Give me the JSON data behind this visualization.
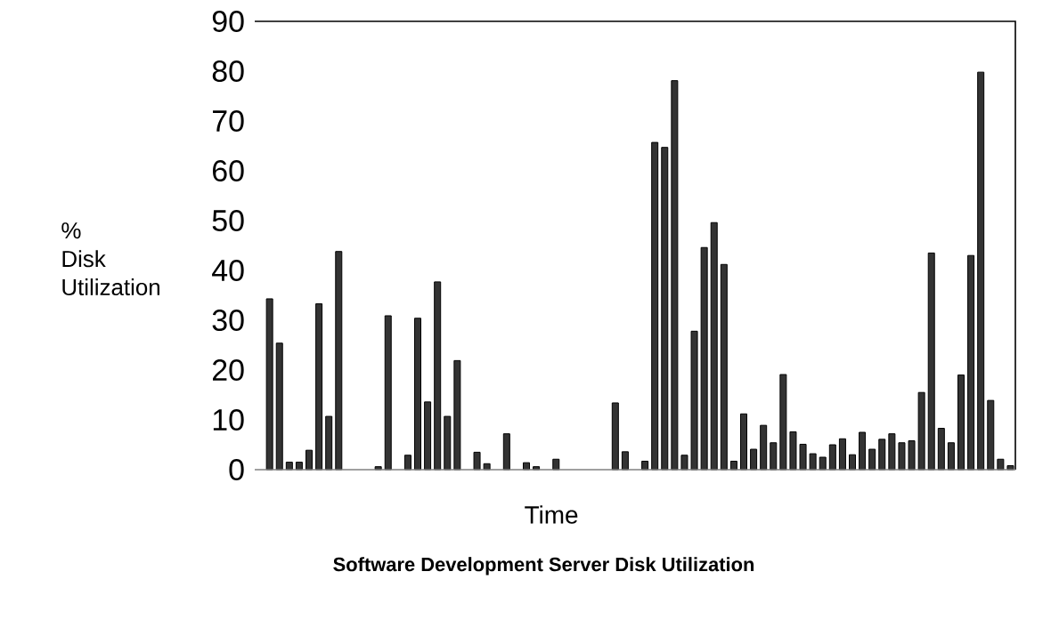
{
  "chart_data": {
    "type": "bar",
    "title": "Software Development Server Disk Utilization",
    "xlabel": "Time",
    "ylabel": "% Disk Utilization",
    "categories": [
      null,
      null,
      null,
      null,
      null,
      null,
      null,
      null,
      null,
      null,
      null,
      null,
      null,
      null,
      null,
      null,
      null,
      null,
      null,
      null,
      null,
      null,
      null,
      null,
      null,
      null,
      null,
      null,
      null,
      null,
      null,
      null,
      null,
      null,
      null,
      null,
      null,
      null,
      null,
      null,
      null,
      null,
      null,
      null,
      null,
      null,
      null,
      null,
      null,
      null,
      null,
      null,
      null,
      null,
      null,
      null,
      null,
      null,
      null,
      null,
      null,
      null,
      null,
      null,
      null,
      null,
      null,
      null,
      null,
      null,
      null,
      null,
      null,
      null,
      null,
      null,
      null
    ],
    "values": [
      null,
      34.3,
      25.4,
      1.5,
      1.5,
      3.9,
      33.3,
      10.7,
      43.8,
      null,
      null,
      null,
      0.6,
      30.9,
      null,
      2.9,
      30.4,
      13.6,
      37.7,
      10.7,
      21.9,
      null,
      3.5,
      1.2,
      null,
      7.2,
      null,
      1.4,
      0.6,
      null,
      2.1,
      null,
      null,
      null,
      null,
      null,
      13.4,
      3.6,
      null,
      1.7,
      65.7,
      64.7,
      78.1,
      2.9,
      27.8,
      44.6,
      49.6,
      41.2,
      1.7,
      11.2,
      4.1,
      8.9,
      5.4,
      19.1,
      7.6,
      5.1,
      3.2,
      2.5,
      5.0,
      6.2,
      3.0,
      7.5,
      4.1,
      6.1,
      7.2,
      5.4,
      5.8,
      15.5,
      43.5,
      8.3,
      5.4,
      19.0,
      43.0,
      79.8,
      13.9,
      2.1,
      0.8
    ],
    "color": "#333333",
    "ylim": [
      0,
      90
    ],
    "yticks": [
      0,
      10,
      20,
      30,
      40,
      50,
      60,
      70,
      80,
      90
    ],
    "grid": false
  }
}
